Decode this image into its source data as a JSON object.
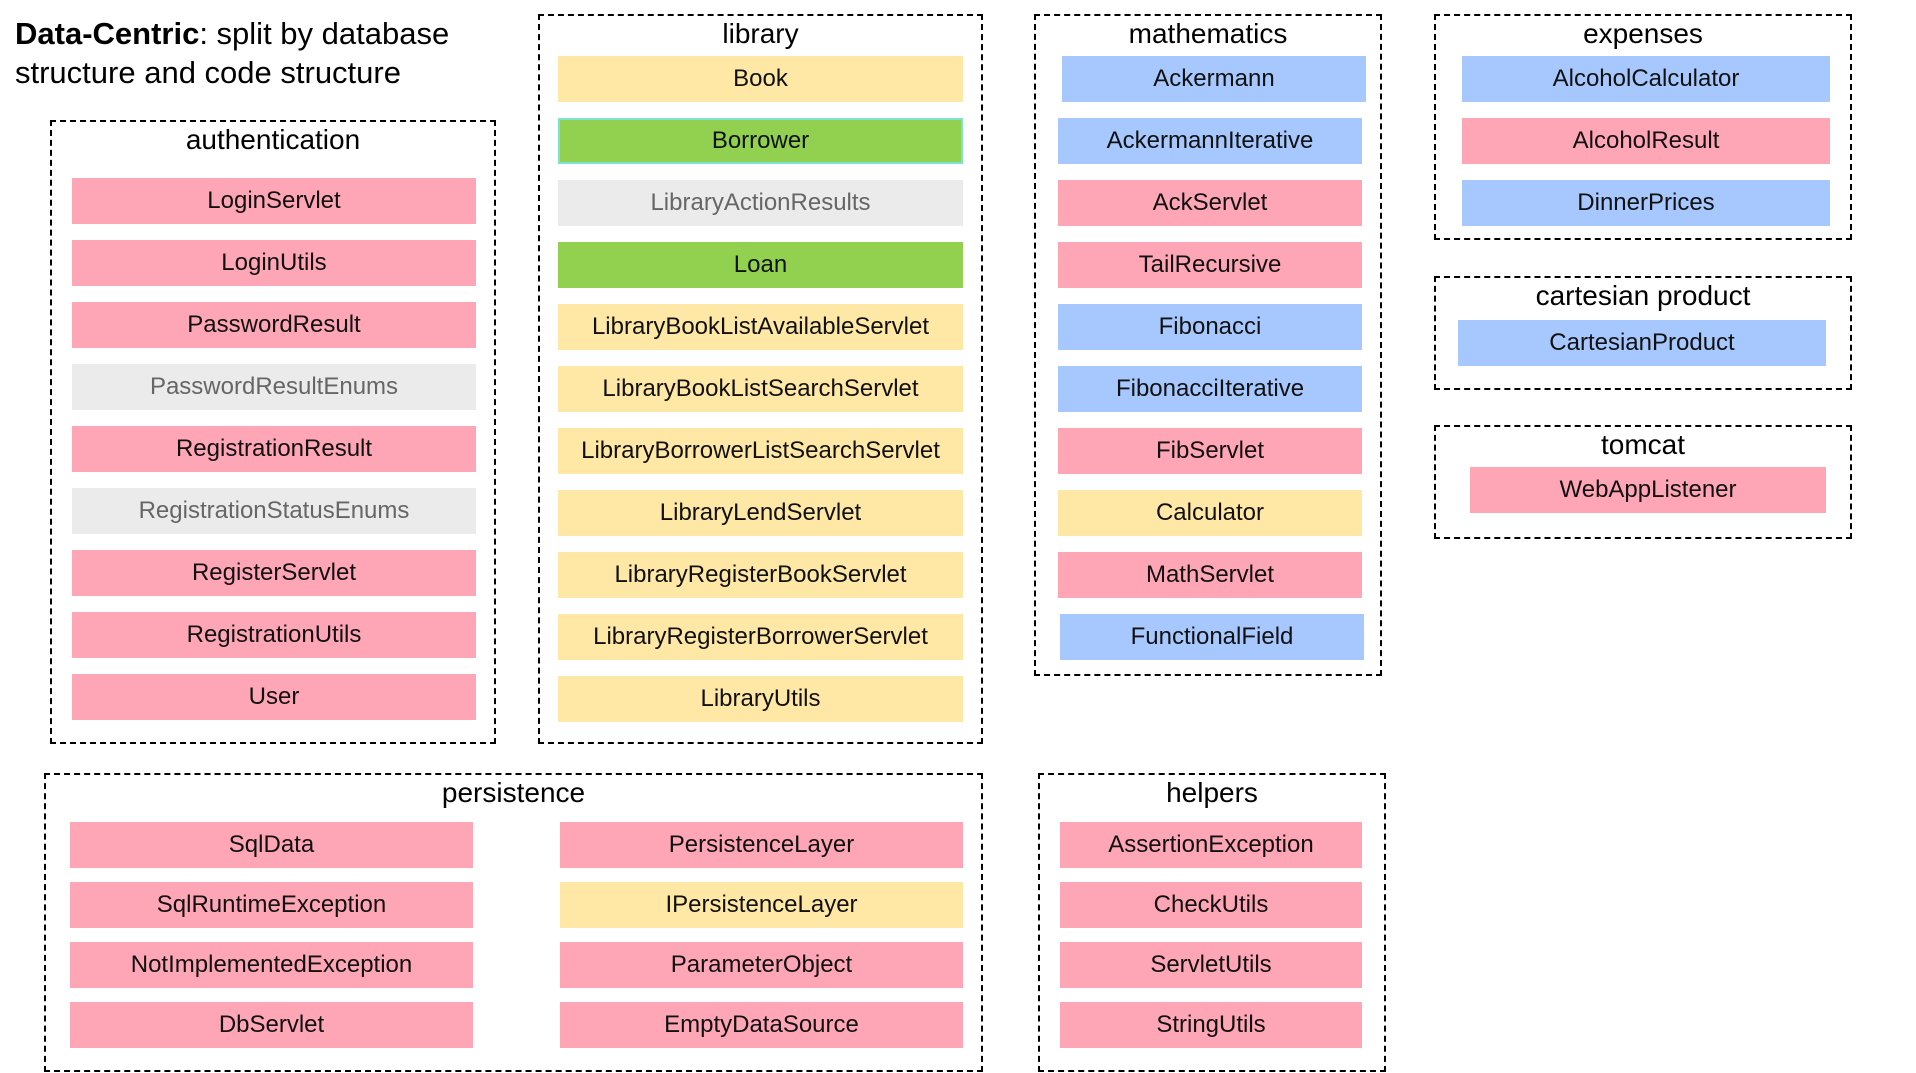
{
  "title": {
    "bold": "Data-Centric",
    "rest": ": split by database structure and code structure"
  },
  "palette": {
    "pink": "#ffa6b6",
    "yellow": "#ffe8a6",
    "blue": "#a6c8ff",
    "green": "#92d050",
    "gray": "#ebebeb"
  },
  "groups": {
    "authentication": {
      "label": "authentication",
      "items": [
        "LoginServlet",
        "LoginUtils",
        "PasswordResult",
        "PasswordResultEnums",
        "RegistrationResult",
        "RegistrationStatusEnums",
        "RegisterServlet",
        "RegistrationUtils",
        "User"
      ]
    },
    "library": {
      "label": "library",
      "items": [
        "Book",
        "Borrower",
        "LibraryActionResults",
        "Loan",
        "LibraryBookListAvailableServlet",
        "LibraryBookListSearchServlet",
        "LibraryBorrowerListSearchServlet",
        "LibraryLendServlet",
        "LibraryRegisterBookServlet",
        "LibraryRegisterBorrowerServlet",
        "LibraryUtils"
      ]
    },
    "mathematics": {
      "label": "mathematics",
      "items": [
        "Ackermann",
        "AckermannIterative",
        "AckServlet",
        "TailRecursive",
        "Fibonacci",
        "FibonacciIterative",
        "FibServlet",
        "Calculator",
        "MathServlet",
        "FunctionalField"
      ]
    },
    "expenses": {
      "label": "expenses",
      "items": [
        "AlcoholCalculator",
        "AlcoholResult",
        "DinnerPrices"
      ]
    },
    "cartesian": {
      "label": "cartesian product",
      "items": [
        "CartesianProduct"
      ]
    },
    "tomcat": {
      "label": "tomcat",
      "items": [
        "WebAppListener"
      ]
    },
    "persistence": {
      "label": "persistence",
      "items": [
        "SqlData",
        "SqlRuntimeException",
        "NotImplementedException",
        "DbServlet",
        "PersistenceLayer",
        "IPersistenceLayer",
        "ParameterObject",
        "EmptyDataSource"
      ]
    },
    "helpers": {
      "label": "helpers",
      "items": [
        "AssertionException",
        "CheckUtils",
        "ServletUtils",
        "StringUtils"
      ]
    }
  }
}
